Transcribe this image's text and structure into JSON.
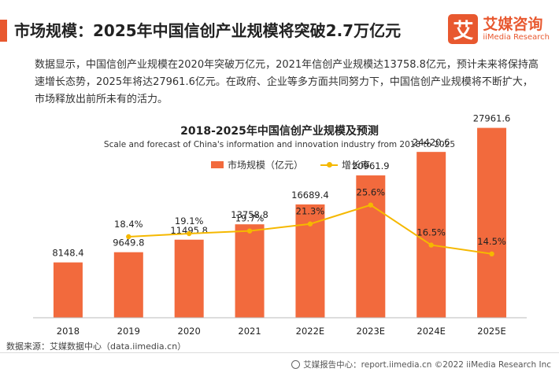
{
  "header": {
    "title": "市场规模：2025年中国信创产业规模将突破2.7万亿元",
    "brand_logo_char": "艾",
    "brand_name": "艾媒咨询",
    "brand_sub": "iiMedia Research"
  },
  "intro": "数据显示，中国信创产业规模在2020年突破万亿元，2021年信创产业规模达13758.8亿元，预计未来将保持高速增长态势，2025年将达27961.6亿元。在政府、企业等多方面共同努力下，中国信创产业规模将不断扩大，市场释放出前所未有的活力。",
  "chart_data": {
    "type": "bar",
    "title": "2018-2025年中国信创产业规模及预测",
    "subtitle": "Scale and forecast of China's information and innovation industry from 2018 to 2025",
    "categories": [
      "2018",
      "2019",
      "2020",
      "2021",
      "2022E",
      "2023E",
      "2024E",
      "2025E"
    ],
    "series": [
      {
        "name": "市场规模（亿元）",
        "kind": "bar",
        "color": "#F26A3D",
        "values": [
          8148.4,
          9649.8,
          11495.8,
          13758.8,
          16689.4,
          20961.9,
          24420.6,
          27961.6
        ],
        "labels": [
          "8148.4",
          "9649.8",
          "11495.8",
          "13758.8",
          "16689.4",
          "20961.9",
          "24420.6",
          "27961.6"
        ]
      },
      {
        "name": "增长率",
        "kind": "line",
        "color": "#F5B800",
        "values": [
          null,
          18.4,
          19.1,
          19.7,
          21.3,
          25.6,
          16.5,
          14.5
        ],
        "labels": [
          "",
          "18.4%",
          "19.1%",
          "19.7%",
          "21.3%",
          "25.6%",
          "16.5%",
          "14.5%"
        ]
      }
    ],
    "bar_ylim": [
      0,
      30000
    ],
    "line_ylim": [
      0,
      30
    ],
    "grid": false,
    "legend": "top-center"
  },
  "footer": {
    "source": "数据来源：艾媒数据中心（data.iimedia.cn）",
    "copyright": "艾媒报告中心：report.iimedia.cn  ©2022  iiMedia Research  Inc"
  }
}
